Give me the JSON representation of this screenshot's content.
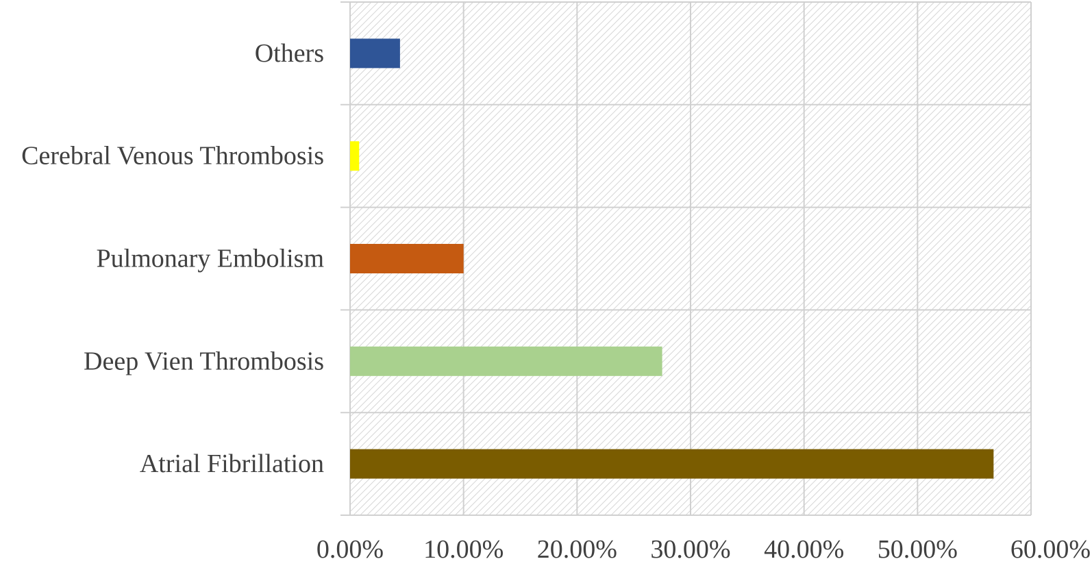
{
  "chart_data": {
    "type": "bar",
    "orientation": "horizontal",
    "categories": [
      "Atrial Fibrillation",
      "Deep Vien Thrombosis",
      "Pulmonary Embolism",
      "Cerebral Venous Thrombosis",
      "Others"
    ],
    "values": [
      56.7,
      27.5,
      10.0,
      0.8,
      4.4
    ],
    "colors": [
      "#7a5c00",
      "#a9d18e",
      "#c55a11",
      "#ffff00",
      "#2f5597"
    ],
    "xlim": [
      0,
      60
    ],
    "xticks": [
      0,
      10,
      20,
      30,
      40,
      50,
      60
    ],
    "xtick_labels": [
      "0.00%",
      "10.00%",
      "20.00%",
      "30.00%",
      "40.00%",
      "50.00%",
      "60.00%"
    ],
    "grid": true,
    "background_pattern": "diagonal-hatch",
    "title": "",
    "xlabel": "",
    "ylabel": ""
  }
}
